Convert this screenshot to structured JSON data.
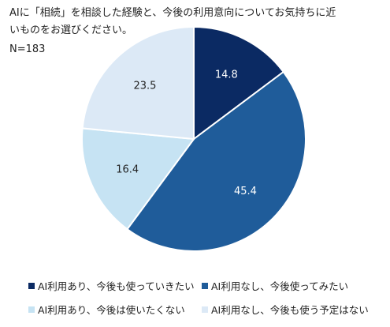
{
  "chart_data": {
    "type": "pie",
    "title_lines": [
      "AIに「相続」を相談した経験と、今後の利用意向についてお気持ちに近",
      "いものをお選びください。"
    ],
    "sample_size": "N=183",
    "slices": [
      {
        "label": "AI利用あり、今後も使っていきたい",
        "value": 14.8,
        "value_label": "14.8",
        "color": "#0b2a63",
        "label_color": "#ffffff"
      },
      {
        "label": "AI利用なし、今後使ってみたい",
        "value": 45.4,
        "value_label": "45.4",
        "color": "#1f5c9a",
        "label_color": "#ffffff"
      },
      {
        "label": "AI利用あり、今後は使いたくない",
        "value": 16.4,
        "value_label": "16.4",
        "color": "#c6e3f3",
        "label_color": "#222222"
      },
      {
        "label": "AI利用なし、今後も使う予定はない",
        "value": 23.5,
        "value_label": "23.5",
        "color": "#dce9f6",
        "label_color": "#222222"
      }
    ],
    "start_angle_deg": 0,
    "direction": "clockwise",
    "legend_position": "bottom"
  }
}
